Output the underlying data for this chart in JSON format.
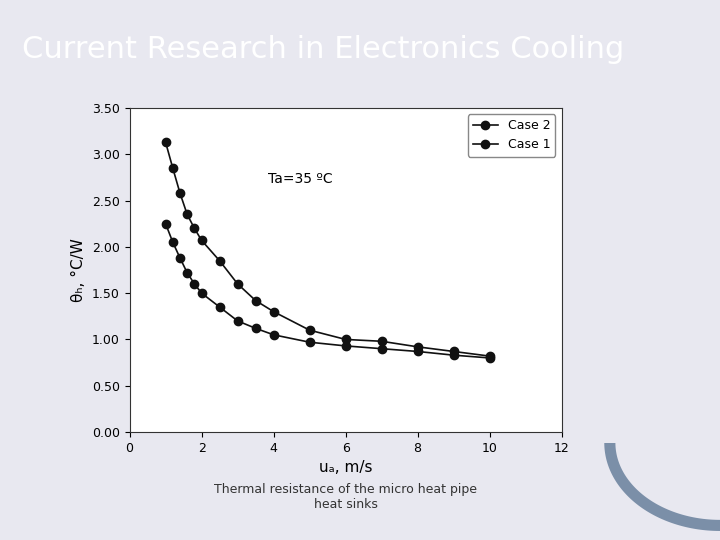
{
  "title": "Current Research in Electronics Cooling",
  "title_bg_color": "#7b7bb5",
  "title_text_color": "#ffffff",
  "title_fontsize": 22,
  "annotation": "Ta=35 ºC",
  "xlabel": "uₐ, m/s",
  "ylabel": "θₕ, °C/W",
  "xlim": [
    0,
    12
  ],
  "ylim": [
    0.0,
    3.5
  ],
  "xticks": [
    0,
    2,
    4,
    6,
    8,
    10,
    12
  ],
  "yticks": [
    0.0,
    0.5,
    1.0,
    1.5,
    2.0,
    2.5,
    3.0,
    3.5
  ],
  "caption": "Thermal resistance of the micro heat pipe\nheat sinks",
  "case2_x": [
    1.0,
    1.2,
    1.4,
    1.6,
    1.8,
    2.0,
    2.5,
    3.0,
    3.5,
    4.0,
    5.0,
    6.0,
    7.0,
    8.0,
    9.0,
    10.0
  ],
  "case2_y": [
    3.13,
    2.85,
    2.58,
    2.35,
    2.2,
    2.07,
    1.85,
    1.6,
    1.42,
    1.3,
    1.1,
    1.0,
    0.98,
    0.92,
    0.87,
    0.82
  ],
  "case1_x": [
    1.0,
    1.2,
    1.4,
    1.6,
    1.8,
    2.0,
    2.5,
    3.0,
    3.5,
    4.0,
    5.0,
    6.0,
    7.0,
    8.0,
    9.0,
    10.0
  ],
  "case1_y": [
    2.25,
    2.05,
    1.88,
    1.72,
    1.6,
    1.5,
    1.35,
    1.2,
    1.12,
    1.05,
    0.97,
    0.93,
    0.9,
    0.87,
    0.83,
    0.8
  ],
  "line_color": "#111111",
  "marker": "o",
  "marker_size": 6,
  "marker_face_color": "#111111",
  "bg_color": "#ffffff",
  "plot_area_color": "#ffffff",
  "border_color": "#aaaaaa",
  "slide_bg_color": "#e8e8f0",
  "legend_case2": "Case 2",
  "legend_case1": "Case 1"
}
